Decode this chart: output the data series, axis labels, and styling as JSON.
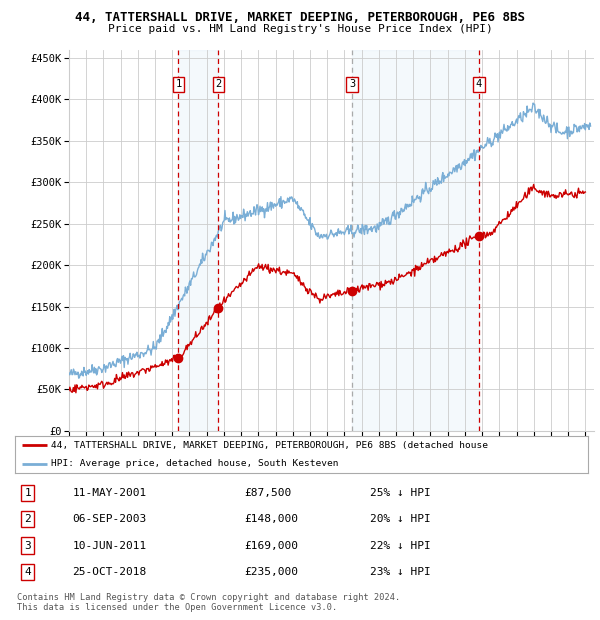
{
  "title1": "44, TATTERSHALL DRIVE, MARKET DEEPING, PETERBOROUGH, PE6 8BS",
  "title2": "Price paid vs. HM Land Registry's House Price Index (HPI)",
  "bg_color": "#ffffff",
  "plot_bg_color": "#ffffff",
  "grid_color": "#cccccc",
  "hpi_line_color": "#7aaed6",
  "price_line_color": "#cc0000",
  "marker_color": "#cc0000",
  "highlight_fill": "#d6e8f7",
  "sale_events": [
    {
      "label": "1",
      "date_x": 2001.36,
      "price": 87500,
      "dashed_color": "#cc0000"
    },
    {
      "label": "2",
      "date_x": 2003.68,
      "price": 148000,
      "dashed_color": "#cc0000"
    },
    {
      "label": "3",
      "date_x": 2011.44,
      "price": 169000,
      "dashed_color": "#aaaaaa"
    },
    {
      "label": "4",
      "date_x": 2018.82,
      "price": 235000,
      "dashed_color": "#cc0000"
    }
  ],
  "table_rows": [
    [
      "1",
      "11-MAY-2001",
      "£87,500",
      "25% ↓ HPI"
    ],
    [
      "2",
      "06-SEP-2003",
      "£148,000",
      "20% ↓ HPI"
    ],
    [
      "3",
      "10-JUN-2011",
      "£169,000",
      "22% ↓ HPI"
    ],
    [
      "4",
      "25-OCT-2018",
      "£235,000",
      "23% ↓ HPI"
    ]
  ],
  "legend_labels": [
    "44, TATTERSHALL DRIVE, MARKET DEEPING, PETERBOROUGH, PE6 8BS (detached house",
    "HPI: Average price, detached house, South Kesteven"
  ],
  "footer": "Contains HM Land Registry data © Crown copyright and database right 2024.\nThis data is licensed under the Open Government Licence v3.0.",
  "ylim": [
    0,
    460000
  ],
  "xlim": [
    1995.0,
    2025.5
  ],
  "yticks": [
    0,
    50000,
    100000,
    150000,
    200000,
    250000,
    300000,
    350000,
    400000,
    450000
  ]
}
